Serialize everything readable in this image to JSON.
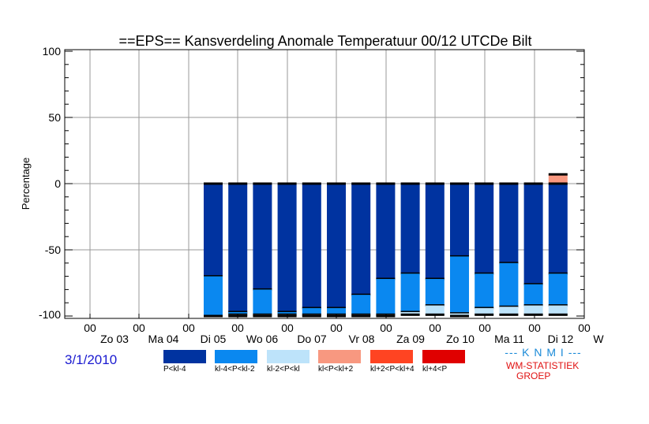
{
  "chart_data": {
    "type": "bar",
    "stacked": true,
    "title": "==EPS== Kansverdeling Anomale Temperatuur 00/12 UTCDe Bilt",
    "ylabel": "Percentage",
    "ylim": [
      -100,
      100
    ],
    "yticks": [
      "100",
      "50",
      "0",
      "-50",
      "-100"
    ],
    "grid": true,
    "x_hour_labels": [
      "00",
      "00",
      "00",
      "00",
      "00",
      "00",
      "00",
      "00",
      "00",
      "00",
      "00"
    ],
    "x_day_labels": [
      "Zo 03",
      "Ma 04",
      "Di 05",
      "Wo 06",
      "Do 07",
      "Vr 08",
      "Za 09",
      "Zo 10",
      "Ma 11",
      "Di 12",
      "W"
    ],
    "categories": [
      "Di 05 00",
      "Di 05 12",
      "Wo 06 00",
      "Wo 06 12",
      "Do 07 00",
      "Do 07 12",
      "Vr 08 00",
      "Vr 08 12",
      "Za 09 00",
      "Za 09 12",
      "Zo 10 00",
      "Zo 10 12",
      "Ma 11 00",
      "Ma 11 12",
      "Di 12 00"
    ],
    "series": [
      {
        "name": "P<kl-4",
        "color": "#0033a0",
        "sign": "neg",
        "values": [
          70,
          97,
          80,
          97,
          94,
          94,
          84,
          72,
          68,
          72,
          55,
          68,
          60,
          76,
          68
        ]
      },
      {
        "name": "kl-4<P<kl-2",
        "color": "#0a88f0",
        "sign": "neg",
        "values": [
          30,
          2,
          19,
          2,
          5,
          5,
          15,
          27,
          29,
          20,
          43,
          26,
          33,
          16,
          24
        ]
      },
      {
        "name": "kl-2<P<kl",
        "color": "#bde3fa",
        "sign": "neg",
        "values": [
          0,
          1,
          1,
          1,
          1,
          1,
          1,
          1,
          2,
          7,
          2,
          5,
          6,
          7,
          7
        ]
      },
      {
        "name": "kl<P<kl+2",
        "color": "#f89880",
        "sign": "pos",
        "values": [
          0,
          0,
          0,
          0,
          0,
          0,
          0,
          0,
          0,
          0,
          0,
          0,
          0,
          0,
          7
        ]
      },
      {
        "name": "kl+2<P<kl+4",
        "color": "#ff4422",
        "sign": "pos",
        "values": [
          0,
          0,
          0,
          0,
          0,
          0,
          0,
          0,
          0,
          0,
          0,
          0,
          0,
          0,
          0
        ]
      },
      {
        "name": "kl+4<P",
        "color": "#e00000",
        "sign": "pos",
        "values": [
          0,
          0,
          0,
          0,
          0,
          0,
          0,
          0,
          0,
          0,
          0,
          0,
          0,
          0,
          0
        ]
      }
    ]
  },
  "footer": {
    "date": "3/1/2010",
    "knmi": "--- K N M I ---",
    "wm_line1": "WM-STATISTIEK",
    "wm_line2": "GROEP"
  }
}
